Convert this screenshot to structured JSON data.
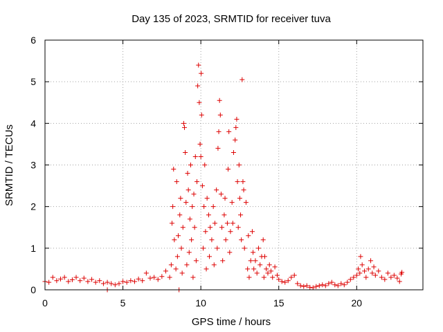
{
  "chart_data": {
    "type": "scatter",
    "title": "Day 135 of 2023, SRMTID for receiver tuva",
    "xlabel": "GPS time / hours",
    "ylabel": "SRMTID / TECUs",
    "xlim": [
      0,
      24.25
    ],
    "ylim": [
      0,
      6
    ],
    "xticks": [
      0,
      5,
      10,
      15,
      20
    ],
    "yticks": [
      0,
      1,
      2,
      3,
      4,
      5,
      6
    ],
    "grid": true,
    "marker": "plus",
    "color": "#dd0000",
    "series": [
      {
        "name": "SRMTID",
        "points": [
          [
            0.0,
            0.2
          ],
          [
            0.25,
            0.18
          ],
          [
            0.5,
            0.3
          ],
          [
            0.75,
            0.22
          ],
          [
            1.0,
            0.26
          ],
          [
            1.25,
            0.3
          ],
          [
            1.5,
            0.2
          ],
          [
            1.75,
            0.24
          ],
          [
            2.0,
            0.3
          ],
          [
            2.25,
            0.22
          ],
          [
            2.5,
            0.28
          ],
          [
            2.75,
            0.2
          ],
          [
            3.0,
            0.25
          ],
          [
            3.25,
            0.18
          ],
          [
            3.5,
            0.22
          ],
          [
            3.75,
            0.15
          ],
          [
            4.0,
            0.0
          ],
          [
            4.0,
            0.18
          ],
          [
            4.25,
            0.15
          ],
          [
            4.5,
            0.12
          ],
          [
            4.75,
            0.15
          ],
          [
            5.0,
            0.2
          ],
          [
            5.25,
            0.18
          ],
          [
            5.5,
            0.22
          ],
          [
            5.75,
            0.2
          ],
          [
            6.0,
            0.26
          ],
          [
            6.25,
            0.22
          ],
          [
            6.5,
            0.4
          ],
          [
            6.75,
            0.28
          ],
          [
            7.0,
            0.3
          ],
          [
            7.25,
            0.25
          ],
          [
            7.5,
            0.32
          ],
          [
            7.75,
            0.45
          ],
          [
            8.0,
            0.3
          ],
          [
            8.1,
            0.6
          ],
          [
            8.15,
            1.6
          ],
          [
            8.2,
            2.0
          ],
          [
            8.25,
            2.9
          ],
          [
            8.3,
            1.2
          ],
          [
            8.4,
            0.5
          ],
          [
            8.45,
            2.6
          ],
          [
            8.5,
            0.8
          ],
          [
            8.55,
            1.3
          ],
          [
            8.6,
            0.0
          ],
          [
            8.65,
            1.8
          ],
          [
            8.7,
            2.2
          ],
          [
            8.75,
            1.0
          ],
          [
            8.8,
            0.4
          ],
          [
            8.85,
            1.5
          ],
          [
            8.9,
            4.0
          ],
          [
            8.95,
            3.9
          ],
          [
            9.0,
            3.3
          ],
          [
            9.05,
            2.1
          ],
          [
            9.1,
            0.6
          ],
          [
            9.15,
            2.8
          ],
          [
            9.2,
            2.4
          ],
          [
            9.25,
            0.9
          ],
          [
            9.3,
            1.7
          ],
          [
            9.35,
            3.0
          ],
          [
            9.4,
            1.2
          ],
          [
            9.45,
            2.0
          ],
          [
            9.5,
            0.3
          ],
          [
            9.55,
            2.3
          ],
          [
            9.6,
            1.5
          ],
          [
            9.65,
            3.2
          ],
          [
            9.7,
            0.7
          ],
          [
            9.75,
            2.6
          ],
          [
            9.8,
            4.9
          ],
          [
            9.85,
            5.4
          ],
          [
            9.9,
            4.5
          ],
          [
            9.95,
            3.5
          ],
          [
            10.0,
            3.2
          ],
          [
            10.02,
            5.2
          ],
          [
            10.05,
            4.2
          ],
          [
            10.1,
            2.5
          ],
          [
            10.15,
            1.0
          ],
          [
            10.2,
            2.0
          ],
          [
            10.25,
            3.0
          ],
          [
            10.3,
            1.4
          ],
          [
            10.35,
            0.5
          ],
          [
            10.4,
            2.2
          ],
          [
            10.5,
            1.8
          ],
          [
            10.55,
            0.8
          ],
          [
            10.6,
            1.5
          ],
          [
            10.7,
            1.2
          ],
          [
            10.8,
            2.0
          ],
          [
            10.85,
            0.6
          ],
          [
            10.9,
            1.6
          ],
          [
            11.0,
            2.4
          ],
          [
            11.05,
            1.0
          ],
          [
            11.1,
            3.4
          ],
          [
            11.15,
            3.8
          ],
          [
            11.2,
            4.55
          ],
          [
            11.25,
            4.2
          ],
          [
            11.3,
            2.3
          ],
          [
            11.35,
            1.5
          ],
          [
            11.4,
            0.7
          ],
          [
            11.5,
            1.8
          ],
          [
            11.55,
            2.2
          ],
          [
            11.6,
            1.2
          ],
          [
            11.7,
            1.6
          ],
          [
            11.75,
            2.9
          ],
          [
            11.8,
            3.8
          ],
          [
            11.85,
            0.9
          ],
          [
            11.9,
            1.4
          ],
          [
            12.0,
            2.1
          ],
          [
            12.05,
            1.6
          ],
          [
            12.1,
            3.3
          ],
          [
            12.2,
            3.6
          ],
          [
            12.25,
            3.9
          ],
          [
            12.3,
            4.1
          ],
          [
            12.35,
            2.6
          ],
          [
            12.4,
            1.5
          ],
          [
            12.45,
            3.0
          ],
          [
            12.5,
            2.2
          ],
          [
            12.55,
            1.8
          ],
          [
            12.6,
            1.2
          ],
          [
            12.65,
            5.05
          ],
          [
            12.7,
            2.6
          ],
          [
            12.75,
            2.4
          ],
          [
            12.8,
            1.0
          ],
          [
            12.9,
            2.1
          ],
          [
            13.0,
            0.5
          ],
          [
            13.05,
            1.3
          ],
          [
            13.1,
            0.3
          ],
          [
            13.2,
            0.7
          ],
          [
            13.3,
            1.4
          ],
          [
            13.35,
            0.9
          ],
          [
            13.4,
            0.5
          ],
          [
            13.5,
            0.7
          ],
          [
            13.6,
            0.4
          ],
          [
            13.7,
            1.0
          ],
          [
            13.8,
            0.6
          ],
          [
            13.9,
            0.8
          ],
          [
            14.0,
            1.2
          ],
          [
            14.05,
            0.3
          ],
          [
            14.1,
            0.8
          ],
          [
            14.2,
            0.5
          ],
          [
            14.3,
            0.4
          ],
          [
            14.4,
            0.6
          ],
          [
            14.5,
            0.45
          ],
          [
            14.6,
            0.3
          ],
          [
            14.75,
            0.55
          ],
          [
            14.9,
            0.35
          ],
          [
            15.0,
            0.25
          ],
          [
            15.2,
            0.2
          ],
          [
            15.4,
            0.18
          ],
          [
            15.6,
            0.22
          ],
          [
            15.8,
            0.3
          ],
          [
            16.0,
            0.35
          ],
          [
            16.2,
            0.15
          ],
          [
            16.4,
            0.1
          ],
          [
            16.6,
            0.08
          ],
          [
            16.8,
            0.1
          ],
          [
            17.0,
            0.06
          ],
          [
            17.2,
            0.05
          ],
          [
            17.4,
            0.08
          ],
          [
            17.6,
            0.1
          ],
          [
            17.8,
            0.12
          ],
          [
            18.0,
            0.1
          ],
          [
            18.2,
            0.15
          ],
          [
            18.4,
            0.18
          ],
          [
            18.6,
            0.12
          ],
          [
            18.8,
            0.1
          ],
          [
            19.0,
            0.15
          ],
          [
            19.2,
            0.12
          ],
          [
            19.4,
            0.18
          ],
          [
            19.6,
            0.25
          ],
          [
            19.8,
            0.3
          ],
          [
            20.0,
            0.35
          ],
          [
            20.1,
            0.5
          ],
          [
            20.2,
            0.4
          ],
          [
            20.25,
            0.8
          ],
          [
            20.35,
            0.6
          ],
          [
            20.5,
            0.45
          ],
          [
            20.6,
            0.3
          ],
          [
            20.75,
            0.5
          ],
          [
            20.9,
            0.7
          ],
          [
            21.0,
            0.4
          ],
          [
            21.1,
            0.55
          ],
          [
            21.2,
            0.35
          ],
          [
            21.4,
            0.45
          ],
          [
            21.6,
            0.3
          ],
          [
            21.8,
            0.25
          ],
          [
            22.0,
            0.4
          ],
          [
            22.2,
            0.3
          ],
          [
            22.4,
            0.35
          ],
          [
            22.6,
            0.28
          ],
          [
            22.75,
            0.2
          ],
          [
            22.85,
            0.38
          ],
          [
            22.9,
            0.42
          ]
        ]
      }
    ]
  }
}
